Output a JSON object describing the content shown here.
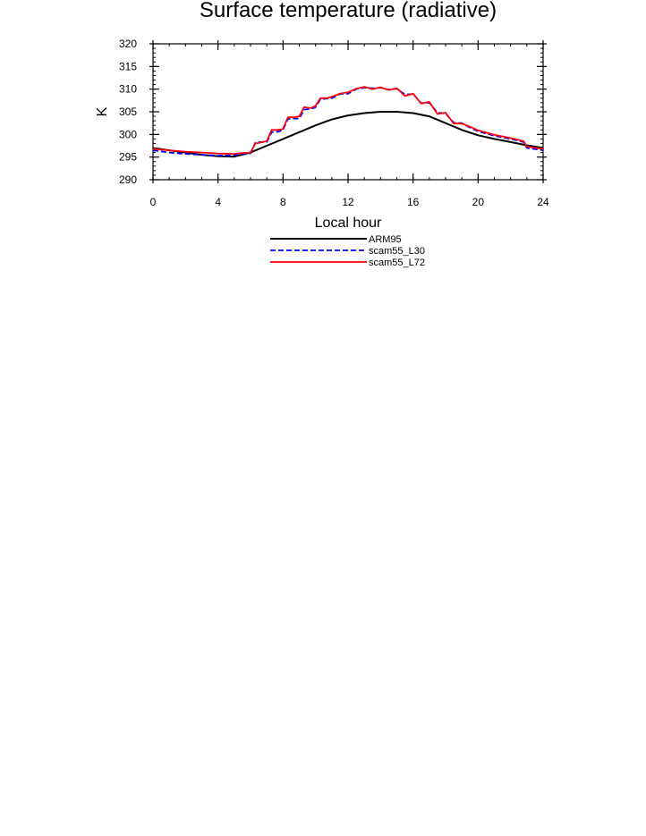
{
  "chart_data": {
    "type": "line",
    "title": "Surface temperature (radiative)",
    "xlabel": "Local hour",
    "ylabel": "K",
    "xlim": [
      0,
      24
    ],
    "ylim": [
      290,
      320
    ],
    "xticks": [
      0,
      4,
      8,
      12,
      16,
      20,
      24
    ],
    "yticks": [
      290,
      295,
      300,
      305,
      310,
      315,
      320
    ],
    "grid": false,
    "legend": "bottom-center",
    "series": [
      {
        "name": "ARM95",
        "color": "#000000",
        "style": "solid",
        "x": [
          0,
          1,
          2,
          3,
          4,
          5,
          6,
          7,
          8,
          9,
          10,
          11,
          12,
          13,
          14,
          15,
          16,
          17,
          18,
          19,
          20,
          21,
          22,
          23,
          24
        ],
        "y": [
          297.0,
          296.5,
          296.0,
          295.5,
          295.2,
          295.1,
          296.0,
          297.5,
          299.0,
          300.5,
          302.0,
          303.3,
          304.2,
          304.7,
          305.0,
          305.0,
          304.7,
          304.0,
          302.5,
          301.0,
          299.8,
          299.0,
          298.3,
          297.6,
          297.0
        ]
      },
      {
        "name": "scam55_L30",
        "color": "#0000ff",
        "style": "dashed",
        "x": [
          0,
          1,
          2,
          3,
          4,
          5,
          5.5,
          6,
          6.3,
          6.6,
          7,
          7.3,
          7.7,
          8,
          8.3,
          8.7,
          9,
          9.3,
          9.7,
          10,
          10.3,
          10.7,
          11,
          11.5,
          12,
          12.5,
          13,
          13.5,
          14,
          14.5,
          15,
          15.5,
          16,
          16.5,
          17,
          17.5,
          18,
          18.5,
          19,
          19.5,
          20,
          21,
          22,
          22.8,
          23,
          24
        ],
        "y": [
          296.5,
          296.0,
          295.7,
          295.5,
          295.3,
          295.4,
          295.7,
          295.8,
          298.2,
          298.3,
          298.3,
          300.5,
          300.6,
          301.0,
          303.4,
          303.5,
          303.5,
          305.5,
          305.6,
          306.0,
          307.8,
          307.9,
          308.0,
          308.9,
          309.0,
          310.0,
          310.3,
          310.2,
          310.3,
          309.9,
          310.1,
          308.8,
          308.9,
          306.9,
          307.0,
          304.8,
          304.6,
          302.6,
          302.5,
          301.5,
          300.7,
          299.7,
          299.0,
          298.3,
          297.0,
          296.5
        ]
      },
      {
        "name": "scam55_L72",
        "color": "#ff0000",
        "style": "solid",
        "x": [
          0,
          1,
          2,
          3,
          4,
          5,
          5.5,
          6,
          6.3,
          6.6,
          7,
          7.3,
          7.7,
          8,
          8.3,
          8.7,
          9,
          9.3,
          9.7,
          10,
          10.3,
          10.7,
          11,
          11.5,
          12,
          12.5,
          13,
          13.5,
          14,
          14.5,
          15,
          15.5,
          16,
          16.5,
          17,
          17.5,
          18,
          18.5,
          19,
          19.5,
          20,
          21,
          22,
          22.8,
          23,
          24
        ],
        "y": [
          296.8,
          296.5,
          296.2,
          296.0,
          295.8,
          295.7,
          295.9,
          296.0,
          298.0,
          298.2,
          298.5,
          301.0,
          301.0,
          301.2,
          303.8,
          303.8,
          304.0,
          306.0,
          305.8,
          306.3,
          308.0,
          308.0,
          308.3,
          309.0,
          309.3,
          310.1,
          310.5,
          310.0,
          310.4,
          309.8,
          310.2,
          308.5,
          309.0,
          306.8,
          307.2,
          304.5,
          304.8,
          302.4,
          302.4,
          301.7,
          300.9,
          299.9,
          299.2,
          298.5,
          297.3,
          296.8
        ]
      }
    ]
  }
}
